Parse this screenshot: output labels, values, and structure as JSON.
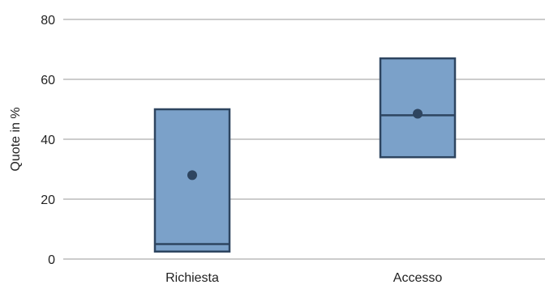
{
  "chart_data": {
    "type": "box",
    "title": "",
    "xlabel": "",
    "ylabel": "Quote in %",
    "ylim": [
      0,
      80
    ],
    "yticks": [
      0,
      20,
      40,
      60,
      80
    ],
    "grid": true,
    "categories": [
      "Richiesta",
      "Accesso"
    ],
    "boxes": [
      {
        "category": "Richiesta",
        "q1": 2.5,
        "median": 5,
        "q3": 50,
        "mean": 28
      },
      {
        "category": "Accesso",
        "q1": 34,
        "median": 48,
        "q3": 67,
        "mean": 48.5
      }
    ],
    "colors": {
      "box_fill": "#7ba1c9",
      "box_stroke": "#2e4560",
      "mean_marker": "#2e4560",
      "grid": "#9a9a9a",
      "text": "#222222"
    }
  }
}
